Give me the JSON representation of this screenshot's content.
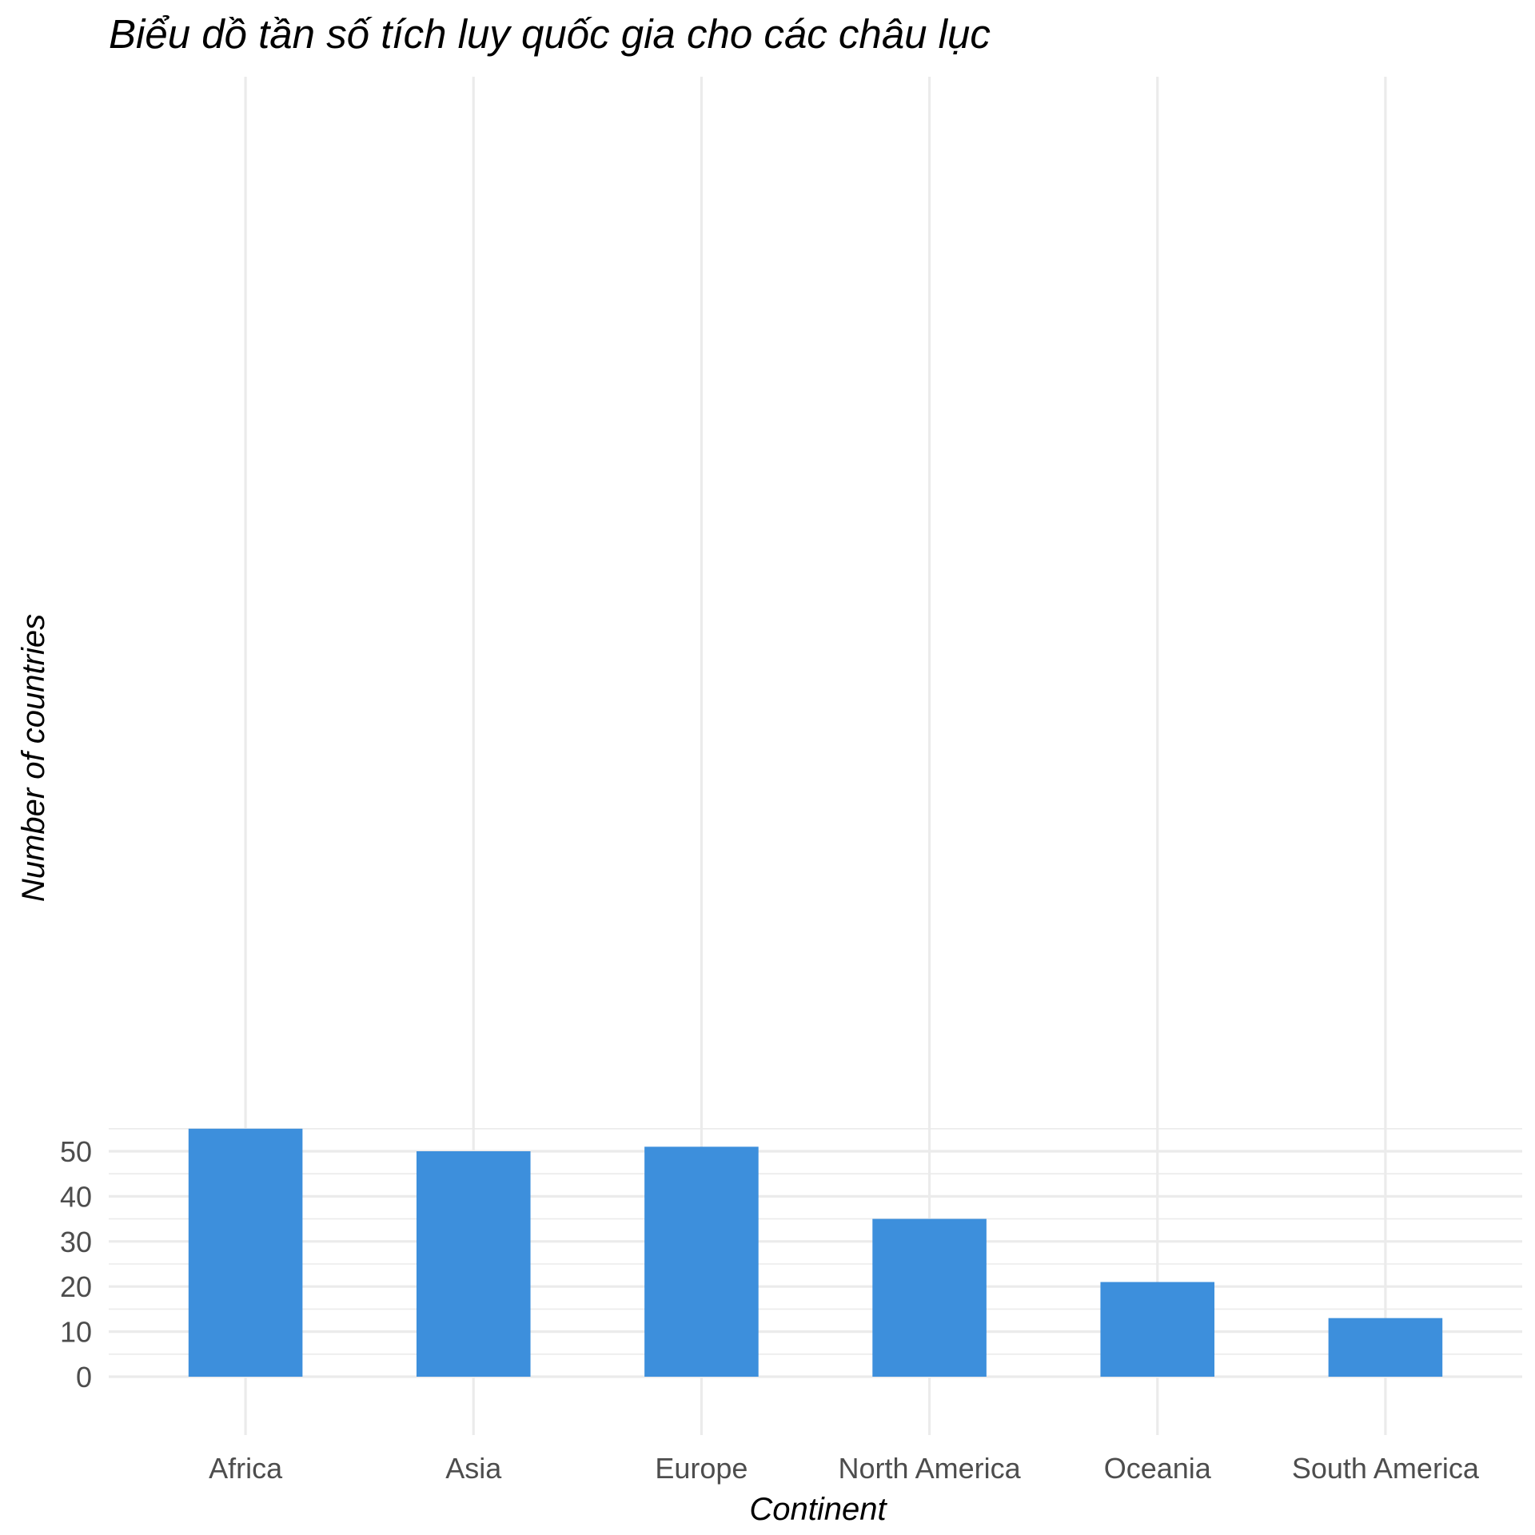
{
  "chart_data": {
    "type": "bar",
    "title": "Biểu dồ tần số tích luy quốc gia cho các châu lục",
    "xlabel": "Continent",
    "ylabel": "Number of countries",
    "categories": [
      "Africa",
      "Asia",
      "Europe",
      "North America",
      "Oceania",
      "South America"
    ],
    "values": [
      55,
      50,
      51,
      35,
      21,
      13
    ],
    "ylim": [
      0,
      57.75
    ],
    "yticks": [
      0,
      10,
      20,
      30,
      40,
      50
    ],
    "grid": true,
    "bar_color": "#3d8fdc"
  }
}
